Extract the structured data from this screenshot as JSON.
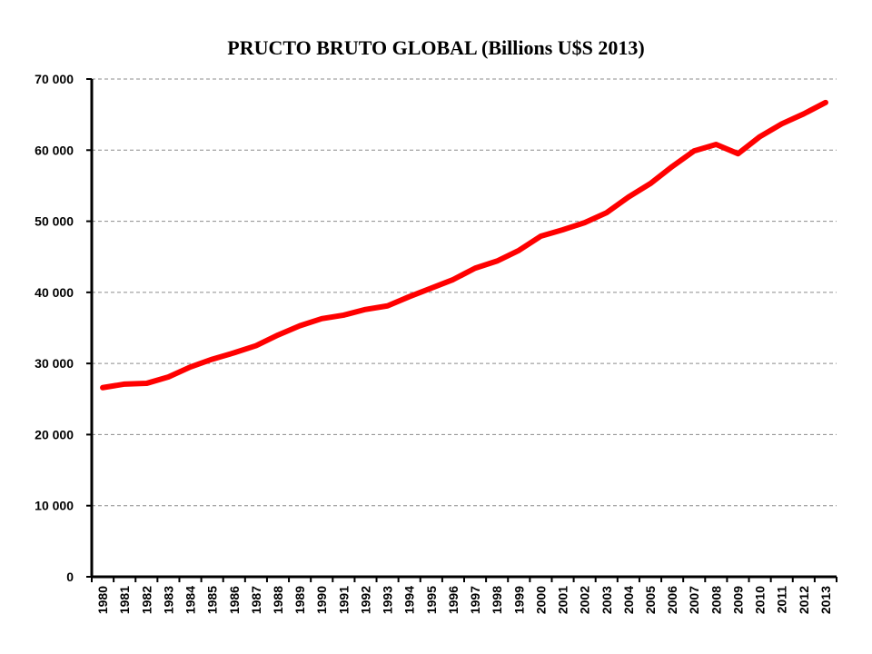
{
  "chart_data": {
    "type": "line",
    "title": "PRUCTO BRUTO GLOBAL (Billions U$S 2013)",
    "xlabel": "",
    "ylabel": "",
    "ylim": [
      0,
      70000
    ],
    "yticks": [
      0,
      10000,
      20000,
      30000,
      40000,
      50000,
      60000,
      70000
    ],
    "ytick_labels": [
      "0",
      "10 000",
      "20 000",
      "30 000",
      "40 000",
      "50 000",
      "60 000",
      "70 000"
    ],
    "grid": "horizontal-dashed",
    "legend": "none",
    "categories": [
      "1980",
      "1981",
      "1982",
      "1983",
      "1984",
      "1985",
      "1986",
      "1987",
      "1988",
      "1989",
      "1990",
      "1991",
      "1992",
      "1993",
      "1994",
      "1995",
      "1996",
      "1997",
      "1998",
      "1999",
      "2000",
      "2001",
      "2002",
      "2003",
      "2004",
      "2005",
      "2006",
      "2007",
      "2008",
      "2009",
      "2010",
      "2011",
      "2012",
      "2013"
    ],
    "series": [
      {
        "color": "#ff0000",
        "values": [
          26600,
          27100,
          27200,
          28100,
          29500,
          30600,
          31500,
          32500,
          34000,
          35300,
          36300,
          36800,
          37600,
          38100,
          39400,
          40600,
          41800,
          43400,
          44400,
          45900,
          47900,
          48800,
          49800,
          51200,
          53400,
          55300,
          57700,
          59900,
          60800,
          59500,
          61900,
          63700,
          65100,
          66700
        ]
      }
    ]
  }
}
